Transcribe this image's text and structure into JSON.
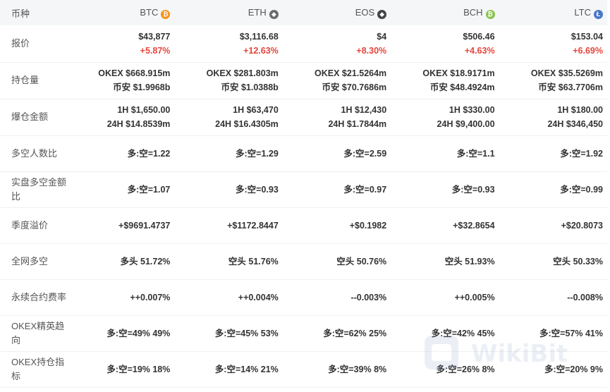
{
  "header": {
    "label": "币种",
    "coins": [
      {
        "name": "BTC",
        "icon": "bitcoin-icon",
        "color": "#f7931a",
        "glyph": "₿"
      },
      {
        "name": "ETH",
        "icon": "ethereum-icon",
        "color": "#6b6b6b",
        "glyph": "◆"
      },
      {
        "name": "EOS",
        "icon": "eos-icon",
        "color": "#444444",
        "glyph": "◆"
      },
      {
        "name": "BCH",
        "icon": "bitcoin-cash-icon",
        "color": "#8dc351",
        "glyph": "₿"
      },
      {
        "name": "LTC",
        "icon": "litecoin-icon",
        "color": "#4a77c8",
        "glyph": "Ł"
      }
    ]
  },
  "rows": {
    "price": {
      "label": "报价",
      "values": [
        {
          "price": "$43,877",
          "change": "+5.87%"
        },
        {
          "price": "$3,116.68",
          "change": "+12.63%"
        },
        {
          "price": "$4",
          "change": "+8.30%"
        },
        {
          "price": "$506.46",
          "change": "+4.63%"
        },
        {
          "price": "$153.04",
          "change": "+6.69%"
        }
      ]
    },
    "open_interest": {
      "label": "持仓量",
      "values": [
        {
          "l1": "OKEX  $668.915m",
          "l2": "币安  $1.9968b"
        },
        {
          "l1": "OKEX  $281.803m",
          "l2": "币安  $1.0388b"
        },
        {
          "l1": "OKEX  $21.5264m",
          "l2": "币安  $70.7686m"
        },
        {
          "l1": "OKEX  $18.9171m",
          "l2": "币安  $48.4924m"
        },
        {
          "l1": "OKEX  $35.5269m",
          "l2": "币安  $63.7706m"
        }
      ]
    },
    "liquidation": {
      "label": "爆仓金额",
      "values": [
        {
          "l1": "1H  $1,650.00",
          "l2": "24H  $14.8539m"
        },
        {
          "l1": "1H  $63,470",
          "l2": "24H  $16.4305m"
        },
        {
          "l1": "1H  $12,430",
          "l2": "24H  $1.7844m"
        },
        {
          "l1": "1H  $330.00",
          "l2": "24H  $9,400.00"
        },
        {
          "l1": "1H  $180.00",
          "l2": "24H  $346,450"
        }
      ]
    },
    "long_short_people": {
      "label": "多空人数比",
      "values": [
        "多:空=1.22",
        "多:空=1.29",
        "多:空=2.59",
        "多:空=1.1",
        "多:空=1.92"
      ]
    },
    "long_short_amount": {
      "label": "实盘多空金额比",
      "values": [
        "多:空=1.07",
        "多:空=0.93",
        "多:空=0.97",
        "多:空=0.93",
        "多:空=0.99"
      ]
    },
    "quarterly_premium": {
      "label": "季度溢价",
      "values": [
        "+$9691.4737",
        "+$1172.8447",
        "+$0.1982",
        "+$32.8654",
        "+$20.8073"
      ]
    },
    "network_long_short": {
      "label": "全网多空",
      "values": [
        "多头  51.72%",
        "空头  51.76%",
        "空头  50.76%",
        "空头  51.93%",
        "空头  50.33%"
      ]
    },
    "funding_rate": {
      "label": "永续合约费率",
      "values": [
        "++0.007%",
        "++0.004%",
        "--0.003%",
        "++0.005%",
        "--0.008%"
      ]
    },
    "okex_elite": {
      "label": "OKEX精英趋向",
      "values": [
        "多:空=49%  49%",
        "多:空=45%  53%",
        "多:空=62%  25%",
        "多:空=42%  45%",
        "多:空=57%  41%"
      ]
    },
    "okex_position": {
      "label": "OKEX持仓指标",
      "values": [
        "多:空=19%  18%",
        "多:空=14%  21%",
        "多:空=39%  8%",
        "多:空=26%  8%",
        "多:空=20%  9%"
      ]
    }
  },
  "watermark": {
    "text": "WikiBit"
  },
  "colors": {
    "positive": "#e6453b",
    "header_bg": "#f4f6f8"
  }
}
